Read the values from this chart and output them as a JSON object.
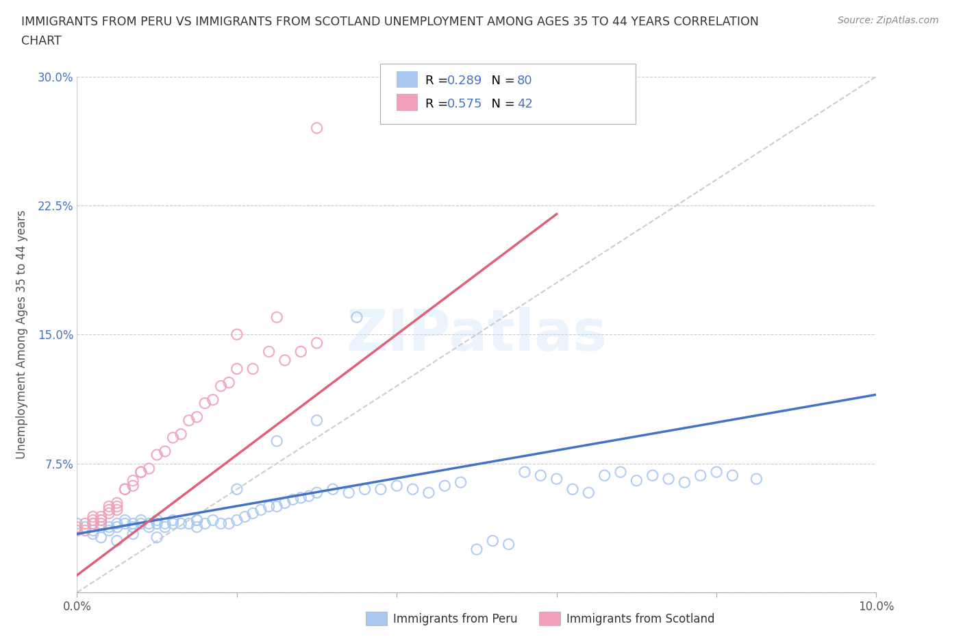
{
  "title_line1": "IMMIGRANTS FROM PERU VS IMMIGRANTS FROM SCOTLAND UNEMPLOYMENT AMONG AGES 35 TO 44 YEARS CORRELATION",
  "title_line2": "CHART",
  "source_text": "Source: ZipAtlas.com",
  "ylabel": "Unemployment Among Ages 35 to 44 years",
  "xlim": [
    0.0,
    0.1
  ],
  "ylim": [
    0.0,
    0.3
  ],
  "xticks": [
    0.0,
    0.02,
    0.04,
    0.06,
    0.08,
    0.1
  ],
  "xticklabels": [
    "0.0%",
    "",
    "",
    "",
    "",
    "10.0%"
  ],
  "yticks": [
    0.0,
    0.075,
    0.15,
    0.225,
    0.3
  ],
  "yticklabels": [
    "",
    "7.5%",
    "15.0%",
    "22.5%",
    "30.0%"
  ],
  "peru_color": "#a8c8f0",
  "scotland_color": "#f0a0b8",
  "peru_R": 0.289,
  "peru_N": 80,
  "scotland_R": 0.575,
  "scotland_N": 42,
  "diag_line_color": "#cccccc",
  "peru_line_color": "#4472c4",
  "scotland_line_color": "#e0607a",
  "background_color": "#ffffff",
  "watermark": "ZIPatlas",
  "legend_R_color": "#4472c4",
  "legend_text_color": "#000000",
  "ytick_color": "#4472c4",
  "peru_scatter_x": [
    0.0,
    0.001,
    0.002,
    0.002,
    0.003,
    0.003,
    0.004,
    0.004,
    0.005,
    0.005,
    0.006,
    0.006,
    0.007,
    0.007,
    0.008,
    0.008,
    0.009,
    0.009,
    0.01,
    0.01,
    0.011,
    0.011,
    0.012,
    0.012,
    0.013,
    0.014,
    0.015,
    0.015,
    0.016,
    0.017,
    0.018,
    0.019,
    0.02,
    0.021,
    0.022,
    0.023,
    0.024,
    0.025,
    0.026,
    0.027,
    0.028,
    0.029,
    0.03,
    0.032,
    0.034,
    0.036,
    0.038,
    0.04,
    0.042,
    0.044,
    0.046,
    0.048,
    0.05,
    0.052,
    0.054,
    0.056,
    0.058,
    0.06,
    0.062,
    0.064,
    0.066,
    0.068,
    0.07,
    0.072,
    0.074,
    0.076,
    0.078,
    0.08,
    0.082,
    0.085,
    0.002,
    0.003,
    0.005,
    0.007,
    0.01,
    0.015,
    0.02,
    0.025,
    0.03,
    0.035
  ],
  "peru_scatter_y": [
    0.04,
    0.038,
    0.036,
    0.04,
    0.038,
    0.042,
    0.036,
    0.038,
    0.04,
    0.038,
    0.04,
    0.042,
    0.038,
    0.04,
    0.042,
    0.04,
    0.038,
    0.04,
    0.04,
    0.042,
    0.04,
    0.038,
    0.04,
    0.042,
    0.04,
    0.04,
    0.038,
    0.042,
    0.04,
    0.042,
    0.04,
    0.04,
    0.042,
    0.044,
    0.046,
    0.048,
    0.05,
    0.05,
    0.052,
    0.054,
    0.055,
    0.056,
    0.058,
    0.06,
    0.058,
    0.06,
    0.06,
    0.062,
    0.06,
    0.058,
    0.062,
    0.064,
    0.025,
    0.03,
    0.028,
    0.07,
    0.068,
    0.066,
    0.06,
    0.058,
    0.068,
    0.07,
    0.065,
    0.068,
    0.066,
    0.064,
    0.068,
    0.07,
    0.068,
    0.066,
    0.034,
    0.032,
    0.03,
    0.034,
    0.032,
    0.042,
    0.06,
    0.088,
    0.1,
    0.16
  ],
  "scotland_scatter_x": [
    0.0,
    0.001,
    0.002,
    0.002,
    0.003,
    0.003,
    0.004,
    0.004,
    0.005,
    0.005,
    0.006,
    0.007,
    0.008,
    0.009,
    0.01,
    0.011,
    0.012,
    0.013,
    0.014,
    0.015,
    0.016,
    0.017,
    0.018,
    0.019,
    0.02,
    0.022,
    0.024,
    0.026,
    0.028,
    0.03,
    0.0,
    0.001,
    0.002,
    0.003,
    0.004,
    0.005,
    0.006,
    0.007,
    0.008,
    0.02,
    0.025,
    0.03
  ],
  "scotland_scatter_y": [
    0.038,
    0.036,
    0.04,
    0.042,
    0.04,
    0.044,
    0.046,
    0.048,
    0.05,
    0.052,
    0.06,
    0.062,
    0.07,
    0.072,
    0.08,
    0.082,
    0.09,
    0.092,
    0.1,
    0.102,
    0.11,
    0.112,
    0.12,
    0.122,
    0.13,
    0.13,
    0.14,
    0.135,
    0.14,
    0.145,
    0.036,
    0.04,
    0.044,
    0.042,
    0.05,
    0.048,
    0.06,
    0.065,
    0.07,
    0.15,
    0.16,
    0.27
  ],
  "peru_line_x": [
    0.0,
    0.1
  ],
  "peru_line_y": [
    0.034,
    0.115
  ],
  "scotland_line_x": [
    0.0,
    0.06
  ],
  "scotland_line_y": [
    0.01,
    0.22
  ]
}
